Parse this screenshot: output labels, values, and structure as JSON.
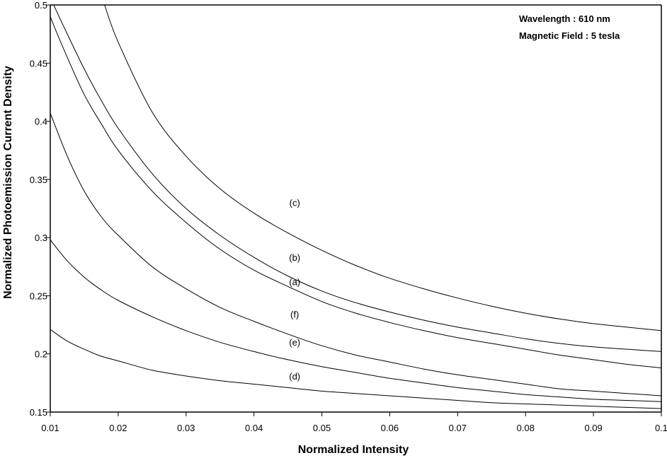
{
  "chart_data": {
    "type": "line",
    "xlabel": "Normalized Intensity",
    "ylabel": "Normalized Photoemission Current Density",
    "xlim": [
      0.01,
      0.1
    ],
    "ylim": [
      0.15,
      0.5
    ],
    "grid": false,
    "x_ticks": [
      "0.01",
      "0.02",
      "0.03",
      "0.04",
      "0.05",
      "0.06",
      "0.07",
      "0.08",
      "0.09",
      "0.1"
    ],
    "y_ticks": [
      "0.15",
      "0.2",
      "0.25",
      "0.3",
      "0.35",
      "0.4",
      "0.45",
      "0.5"
    ],
    "annotations": [
      "Wavelength :  610 nm",
      "Magnetic Field : 5 tesla"
    ],
    "series": [
      {
        "name": "(c)",
        "label_at": [
          0.046,
          0.327
        ],
        "x": [
          0.018,
          0.02,
          0.025,
          0.03,
          0.035,
          0.04,
          0.045,
          0.05,
          0.055,
          0.06,
          0.065,
          0.07,
          0.075,
          0.08,
          0.085,
          0.09,
          0.095,
          0.1
        ],
        "y": [
          0.5,
          0.468,
          0.408,
          0.37,
          0.342,
          0.321,
          0.304,
          0.289,
          0.276,
          0.265,
          0.256,
          0.248,
          0.241,
          0.235,
          0.23,
          0.226,
          0.223,
          0.22
        ]
      },
      {
        "name": "(b)",
        "label_at": [
          0.046,
          0.28
        ],
        "x": [
          0.0105,
          0.0125,
          0.015,
          0.0175,
          0.02,
          0.025,
          0.03,
          0.035,
          0.04,
          0.045,
          0.05,
          0.055,
          0.06,
          0.065,
          0.07,
          0.075,
          0.08,
          0.085,
          0.09,
          0.095,
          0.1
        ],
        "y": [
          0.5,
          0.475,
          0.445,
          0.418,
          0.394,
          0.355,
          0.325,
          0.302,
          0.283,
          0.267,
          0.254,
          0.244,
          0.236,
          0.229,
          0.223,
          0.218,
          0.213,
          0.209,
          0.206,
          0.204,
          0.202
        ]
      },
      {
        "name": "(a)",
        "label_at": [
          0.046,
          0.259
        ],
        "x": [
          0.0095,
          0.01,
          0.0125,
          0.015,
          0.0175,
          0.02,
          0.025,
          0.03,
          0.035,
          0.04,
          0.045,
          0.05,
          0.055,
          0.06,
          0.065,
          0.07,
          0.075,
          0.08,
          0.085,
          0.09,
          0.095,
          0.1
        ],
        "y": [
          0.5,
          0.49,
          0.455,
          0.423,
          0.398,
          0.375,
          0.34,
          0.313,
          0.29,
          0.272,
          0.258,
          0.245,
          0.235,
          0.227,
          0.22,
          0.214,
          0.209,
          0.204,
          0.199,
          0.195,
          0.191,
          0.188
        ]
      },
      {
        "name": "(f)",
        "label_at": [
          0.046,
          0.231
        ],
        "x": [
          0.01,
          0.0125,
          0.015,
          0.0175,
          0.02,
          0.025,
          0.03,
          0.035,
          0.04,
          0.045,
          0.05,
          0.055,
          0.06,
          0.065,
          0.07,
          0.075,
          0.08,
          0.085,
          0.09,
          0.095,
          0.1
        ],
        "y": [
          0.407,
          0.37,
          0.34,
          0.318,
          0.302,
          0.275,
          0.256,
          0.24,
          0.228,
          0.217,
          0.207,
          0.199,
          0.193,
          0.187,
          0.182,
          0.178,
          0.174,
          0.17,
          0.168,
          0.166,
          0.164
        ]
      },
      {
        "name": "(e)",
        "label_at": [
          0.046,
          0.207
        ],
        "x": [
          0.01,
          0.0125,
          0.015,
          0.0175,
          0.02,
          0.025,
          0.03,
          0.035,
          0.04,
          0.045,
          0.05,
          0.055,
          0.06,
          0.065,
          0.07,
          0.075,
          0.08,
          0.085,
          0.09,
          0.095,
          0.1
        ],
        "y": [
          0.298,
          0.28,
          0.266,
          0.255,
          0.246,
          0.232,
          0.22,
          0.21,
          0.202,
          0.195,
          0.189,
          0.184,
          0.179,
          0.175,
          0.171,
          0.168,
          0.165,
          0.163,
          0.161,
          0.16,
          0.159
        ]
      },
      {
        "name": "(d)",
        "label_at": [
          0.046,
          0.178
        ],
        "x": [
          0.01,
          0.0125,
          0.015,
          0.0175,
          0.02,
          0.025,
          0.03,
          0.035,
          0.04,
          0.045,
          0.05,
          0.055,
          0.06,
          0.065,
          0.07,
          0.075,
          0.08,
          0.085,
          0.09,
          0.095,
          0.1
        ],
        "y": [
          0.221,
          0.211,
          0.204,
          0.198,
          0.194,
          0.186,
          0.181,
          0.177,
          0.174,
          0.171,
          0.168,
          0.166,
          0.164,
          0.162,
          0.16,
          0.158,
          0.157,
          0.156,
          0.155,
          0.154,
          0.153
        ]
      }
    ]
  }
}
